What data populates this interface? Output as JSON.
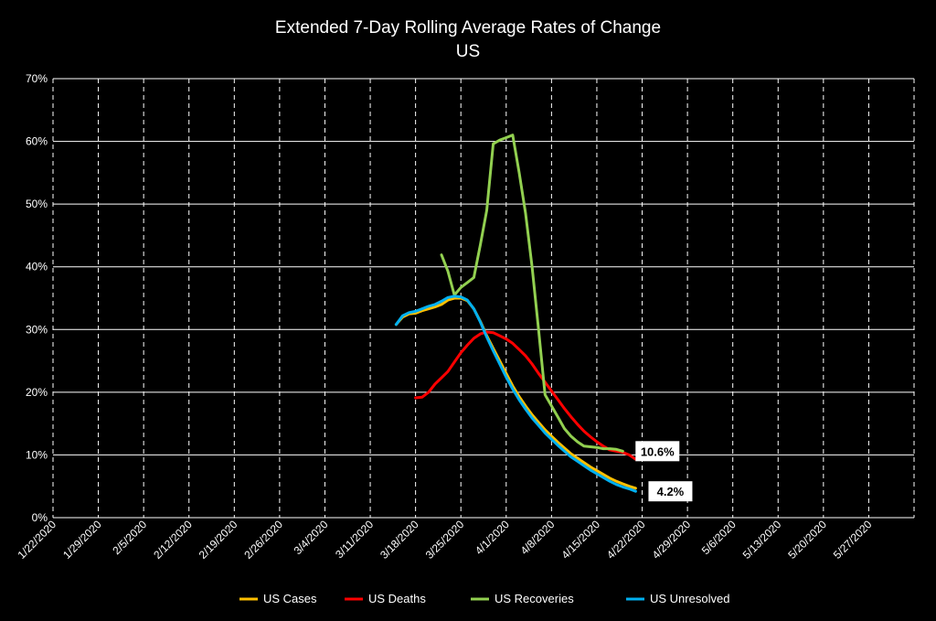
{
  "chart_data": {
    "type": "line",
    "title": "Extended 7-Day Rolling Average Rates of Change",
    "subtitle": "US",
    "xlabel": "",
    "ylabel": "",
    "ylim": [
      0,
      70
    ],
    "y_ticks": [
      "0%",
      "10%",
      "20%",
      "30%",
      "40%",
      "50%",
      "60%",
      "70%"
    ],
    "x_ticks": [
      "1/22/2020",
      "1/29/2020",
      "2/5/2020",
      "2/12/2020",
      "2/19/2020",
      "2/26/2020",
      "3/4/2020",
      "3/11/2020",
      "3/18/2020",
      "3/25/2020",
      "4/1/2020",
      "4/8/2020",
      "4/15/2020",
      "4/22/2020",
      "4/29/2020",
      "5/6/2020",
      "5/13/2020",
      "5/20/2020",
      "5/27/2020"
    ],
    "x_range": [
      "1/22/2020",
      "6/3/2020"
    ],
    "grid": "horizontal solid, vertical dashed",
    "legend_position": "bottom",
    "series": [
      {
        "name": "US Cases",
        "color": "#ffc000",
        "points": [
          [
            "3/15/2020",
            30.8
          ],
          [
            "3/16/2020",
            32.0
          ],
          [
            "3/17/2020",
            32.5
          ],
          [
            "3/18/2020",
            32.6
          ],
          [
            "3/19/2020",
            33.0
          ],
          [
            "3/20/2020",
            33.3
          ],
          [
            "3/21/2020",
            33.6
          ],
          [
            "3/22/2020",
            34.0
          ],
          [
            "3/23/2020",
            34.7
          ],
          [
            "3/24/2020",
            35.0
          ],
          [
            "3/25/2020",
            35.0
          ],
          [
            "3/26/2020",
            34.6
          ],
          [
            "3/27/2020",
            33.3
          ],
          [
            "3/28/2020",
            31.3
          ],
          [
            "3/29/2020",
            29.0
          ],
          [
            "3/30/2020",
            27.0
          ],
          [
            "3/31/2020",
            25.0
          ],
          [
            "4/1/2020",
            23.0
          ],
          [
            "4/2/2020",
            21.0
          ],
          [
            "4/3/2020",
            19.3
          ],
          [
            "4/4/2020",
            17.8
          ],
          [
            "4/5/2020",
            16.4
          ],
          [
            "4/6/2020",
            15.2
          ],
          [
            "4/7/2020",
            14.0
          ],
          [
            "4/8/2020",
            13.0
          ],
          [
            "4/9/2020",
            12.0
          ],
          [
            "4/10/2020",
            11.1
          ],
          [
            "4/11/2020",
            10.2
          ],
          [
            "4/12/2020",
            9.5
          ],
          [
            "4/13/2020",
            8.8
          ],
          [
            "4/14/2020",
            8.1
          ],
          [
            "4/15/2020",
            7.5
          ],
          [
            "4/16/2020",
            6.9
          ],
          [
            "4/17/2020",
            6.3
          ],
          [
            "4/18/2020",
            5.8
          ],
          [
            "4/19/2020",
            5.4
          ],
          [
            "4/20/2020",
            5.0
          ],
          [
            "4/21/2020",
            4.7
          ]
        ]
      },
      {
        "name": "US Deaths",
        "color": "#ff0000",
        "points": [
          [
            "3/18/2020",
            19.1
          ],
          [
            "3/19/2020",
            19.2
          ],
          [
            "3/20/2020",
            20.0
          ],
          [
            "3/21/2020",
            21.3
          ],
          [
            "3/22/2020",
            22.3
          ],
          [
            "3/23/2020",
            23.3
          ],
          [
            "3/24/2020",
            24.8
          ],
          [
            "3/25/2020",
            26.3
          ],
          [
            "3/26/2020",
            27.5
          ],
          [
            "3/27/2020",
            28.6
          ],
          [
            "3/28/2020",
            29.3
          ],
          [
            "3/29/2020",
            29.6
          ],
          [
            "3/30/2020",
            29.5
          ],
          [
            "3/31/2020",
            29.0
          ],
          [
            "4/1/2020",
            28.5
          ],
          [
            "4/2/2020",
            27.8
          ],
          [
            "4/3/2020",
            26.8
          ],
          [
            "4/4/2020",
            25.8
          ],
          [
            "4/5/2020",
            24.5
          ],
          [
            "4/6/2020",
            23.0
          ],
          [
            "4/7/2020",
            21.6
          ],
          [
            "4/8/2020",
            20.2
          ],
          [
            "4/9/2020",
            18.8
          ],
          [
            "4/10/2020",
            17.4
          ],
          [
            "4/11/2020",
            16.1
          ],
          [
            "4/12/2020",
            14.9
          ],
          [
            "4/13/2020",
            13.8
          ],
          [
            "4/14/2020",
            12.9
          ],
          [
            "4/15/2020",
            12.1
          ],
          [
            "4/16/2020",
            11.4
          ],
          [
            "4/17/2020",
            10.8
          ],
          [
            "4/18/2020",
            10.6
          ],
          [
            "4/19/2020",
            10.4
          ],
          [
            "4/20/2020",
            10.0
          ],
          [
            "4/21/2020",
            9.3
          ]
        ]
      },
      {
        "name": "US Recoveries",
        "color": "#92d050",
        "points": [
          [
            "3/22/2020",
            41.9
          ],
          [
            "3/23/2020",
            39.3
          ],
          [
            "3/24/2020",
            35.5
          ],
          [
            "3/25/2020",
            36.7
          ],
          [
            "3/26/2020",
            37.5
          ],
          [
            "3/27/2020",
            38.3
          ],
          [
            "3/28/2020",
            43.5
          ],
          [
            "3/29/2020",
            49.0
          ],
          [
            "3/30/2020",
            59.6
          ],
          [
            "3/31/2020",
            60.2
          ],
          [
            "4/1/2020",
            60.6
          ],
          [
            "4/2/2020",
            61.0
          ],
          [
            "4/3/2020",
            55.0
          ],
          [
            "4/4/2020",
            48.5
          ],
          [
            "4/5/2020",
            40.0
          ],
          [
            "4/6/2020",
            30.0
          ],
          [
            "4/7/2020",
            19.6
          ],
          [
            "4/8/2020",
            17.8
          ],
          [
            "4/9/2020",
            16.0
          ],
          [
            "4/10/2020",
            14.2
          ],
          [
            "4/11/2020",
            13.0
          ],
          [
            "4/12/2020",
            12.1
          ],
          [
            "4/13/2020",
            11.4
          ],
          [
            "4/14/2020",
            11.3
          ],
          [
            "4/15/2020",
            11.2
          ],
          [
            "4/16/2020",
            11.0
          ],
          [
            "4/17/2020",
            11.0
          ],
          [
            "4/18/2020",
            10.9
          ],
          [
            "4/19/2020",
            10.6
          ]
        ]
      },
      {
        "name": "US Unresolved",
        "color": "#00b0f0",
        "points": [
          [
            "3/15/2020",
            30.8
          ],
          [
            "3/16/2020",
            32.2
          ],
          [
            "3/17/2020",
            32.7
          ],
          [
            "3/18/2020",
            32.9
          ],
          [
            "3/19/2020",
            33.3
          ],
          [
            "3/20/2020",
            33.7
          ],
          [
            "3/21/2020",
            34.0
          ],
          [
            "3/22/2020",
            34.5
          ],
          [
            "3/23/2020",
            35.1
          ],
          [
            "3/24/2020",
            35.3
          ],
          [
            "3/25/2020",
            35.2
          ],
          [
            "3/26/2020",
            34.7
          ],
          [
            "3/27/2020",
            33.3
          ],
          [
            "3/28/2020",
            31.2
          ],
          [
            "3/29/2020",
            28.8
          ],
          [
            "3/30/2020",
            26.6
          ],
          [
            "3/31/2020",
            24.5
          ],
          [
            "4/1/2020",
            22.4
          ],
          [
            "4/2/2020",
            20.5
          ],
          [
            "4/3/2020",
            18.8
          ],
          [
            "4/4/2020",
            17.3
          ],
          [
            "4/5/2020",
            15.9
          ],
          [
            "4/6/2020",
            14.7
          ],
          [
            "4/7/2020",
            13.5
          ],
          [
            "4/8/2020",
            12.5
          ],
          [
            "4/9/2020",
            11.5
          ],
          [
            "4/10/2020",
            10.6
          ],
          [
            "4/11/2020",
            9.7
          ],
          [
            "4/12/2020",
            9.0
          ],
          [
            "4/13/2020",
            8.3
          ],
          [
            "4/14/2020",
            7.6
          ],
          [
            "4/15/2020",
            7.0
          ],
          [
            "4/16/2020",
            6.4
          ],
          [
            "4/17/2020",
            5.8
          ],
          [
            "4/18/2020",
            5.3
          ],
          [
            "4/19/2020",
            4.9
          ],
          [
            "4/20/2020",
            4.6
          ],
          [
            "4/21/2020",
            4.2
          ]
        ]
      }
    ],
    "annotations": [
      {
        "text": "10.6%",
        "series": "US Recoveries"
      },
      {
        "text": "4.2%",
        "series": "US Unresolved"
      }
    ]
  }
}
